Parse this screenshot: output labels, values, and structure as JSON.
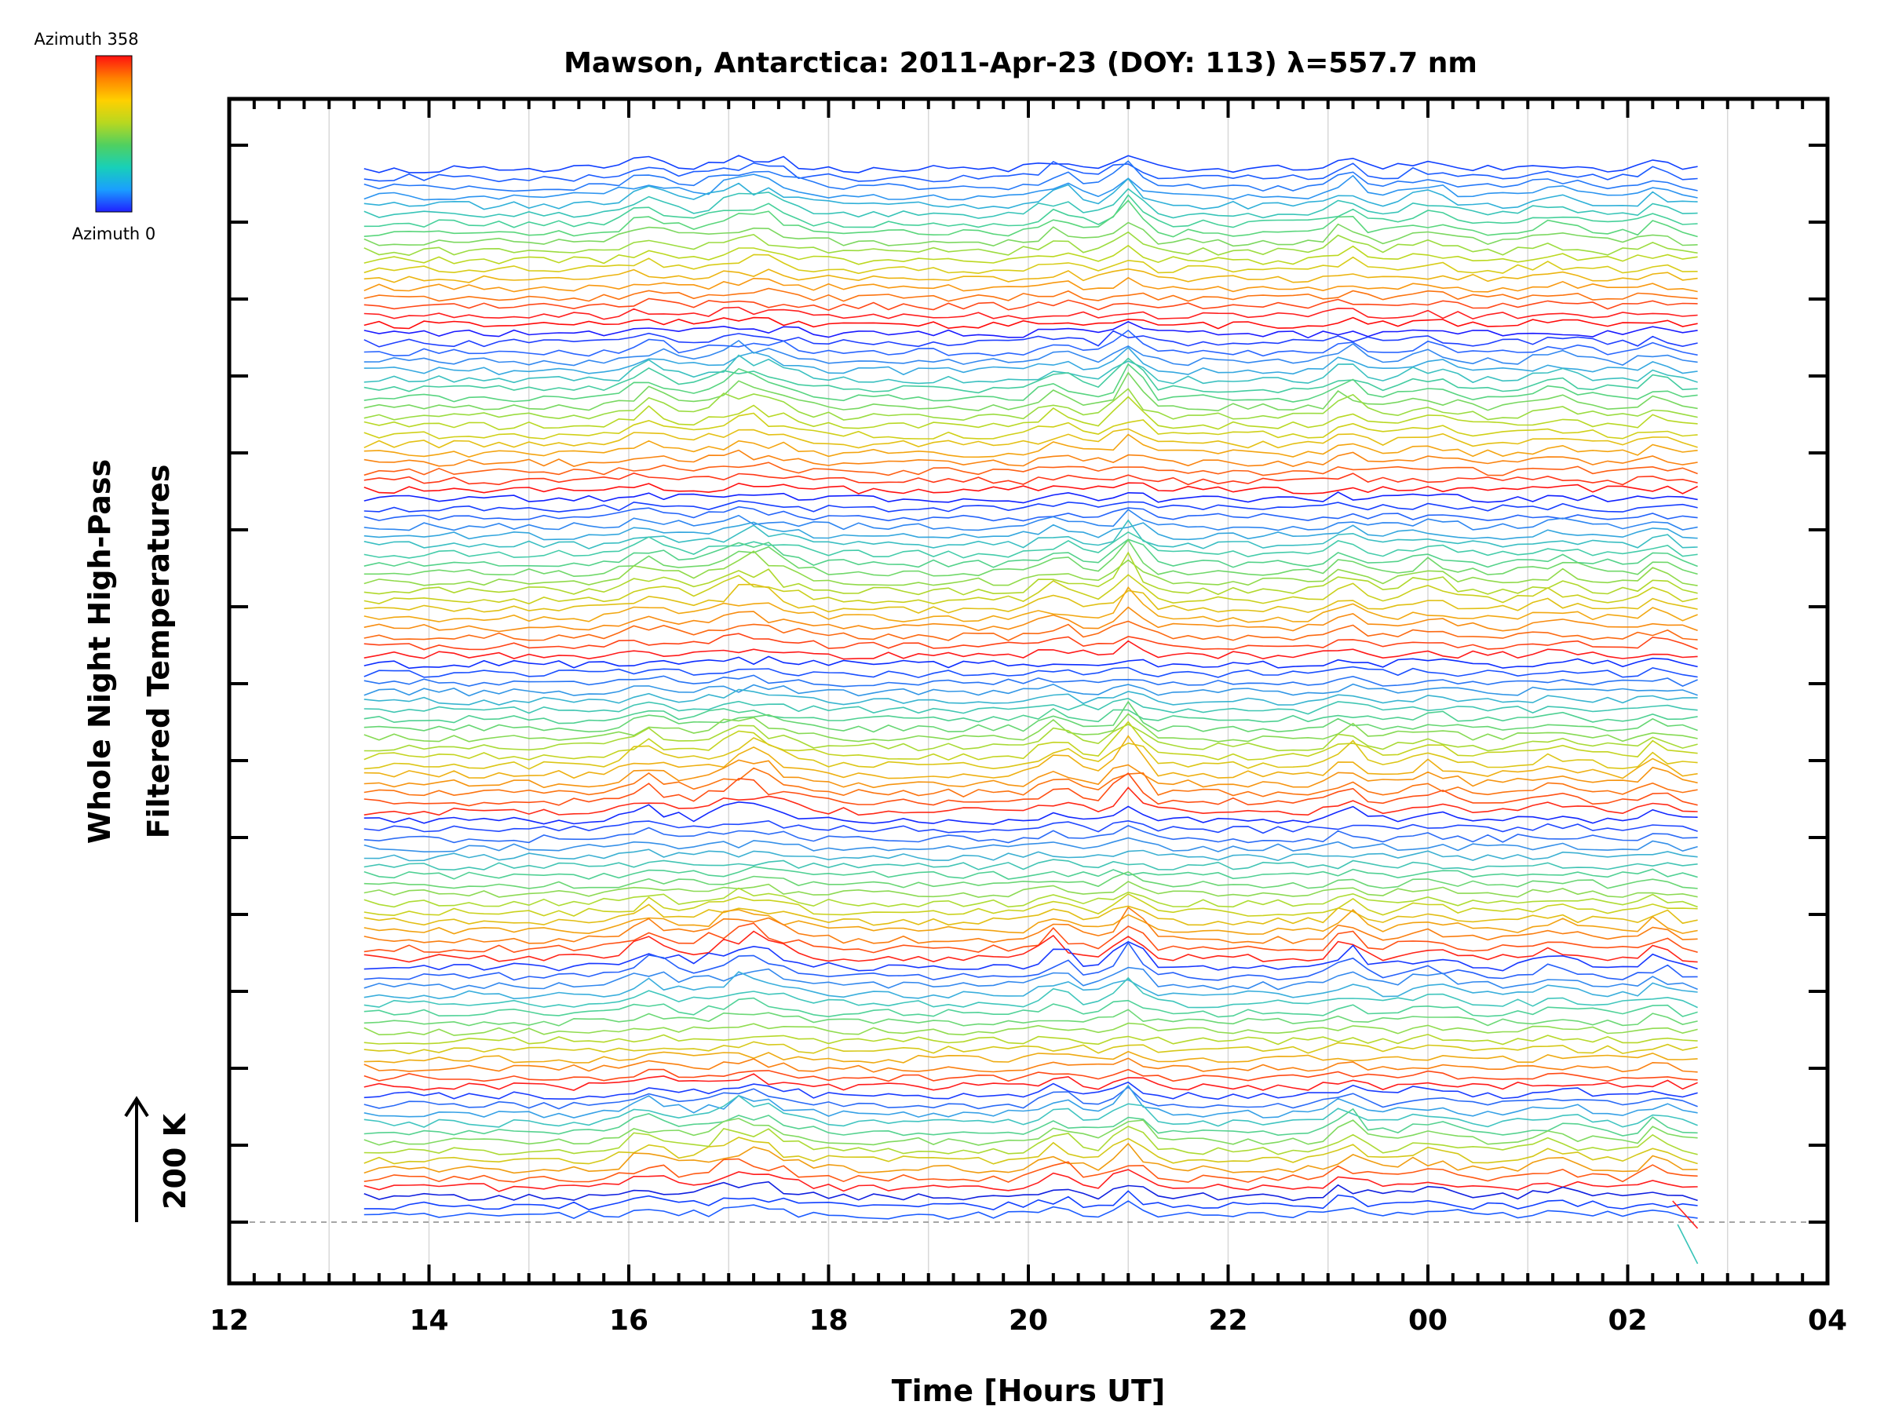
{
  "colorbar": {
    "top_label": "Azimuth  358",
    "bottom_label": "Azimuth  0",
    "colors": [
      "#2020ff",
      "#1a9fff",
      "#18d0b8",
      "#50d060",
      "#b8d820",
      "#ffd000",
      "#ff8000",
      "#ff1010"
    ]
  },
  "chart_data": {
    "type": "line",
    "title": "Mawson, Antarctica: 2011-Apr-23 (DOY: 113) λ=557.7 nm",
    "xlabel": "Time [Hours UT]",
    "ylabel": [
      "Whole Night High-Pass",
      "Filtered Temperatures"
    ],
    "scale_label": "200 K",
    "x_axis": {
      "range_hours_ut": [
        12,
        28
      ],
      "tick_hours_ut": [
        12,
        14,
        16,
        18,
        20,
        22,
        24,
        26,
        28
      ],
      "tick_labels": [
        "12",
        "14",
        "16",
        "18",
        "20",
        "22",
        "00",
        "02",
        "04"
      ],
      "gridlines_hours_ut": [
        13,
        14,
        15,
        16,
        17,
        18,
        19,
        20,
        21,
        22,
        23,
        24,
        25,
        26,
        27
      ],
      "minor_ticks_per_hour": 4
    },
    "y_axis": {
      "major_ticks": 15,
      "minor_ticks_per_major": 1
    },
    "grid": true,
    "baseline_dashed": true,
    "data_window_hours_ut": [
      13.35,
      26.7
    ],
    "sample_interval_hours": 0.15,
    "series_count": 115,
    "series_cycle": [
      "#1040ff",
      "#1c5cff",
      "#2478f8",
      "#2c94f0",
      "#30b0d8",
      "#38c4b8",
      "#46d09a",
      "#5ad67c",
      "#7cd860",
      "#9cdc40",
      "#bcd820",
      "#d8cc18",
      "#ecb410",
      "#f89810",
      "#fc7410",
      "#ff4818",
      "#ff2020",
      "#ff0a0a",
      "#1a1aff",
      "#2040ff",
      "#2a66ff",
      "#3388f0",
      "#36a8e0",
      "#3bc0c0",
      "#44cca0",
      "#58d480",
      "#78d860",
      "#9adc40",
      "#b8d824",
      "#d0d018",
      "#e4c014",
      "#f4a410",
      "#fa8410",
      "#fe6014",
      "#ff3818",
      "#ff1010",
      "#1020ff",
      "#1840ff",
      "#2464fa",
      "#2e86f0",
      "#34a6de",
      "#3abec2",
      "#44ccaa",
      "#54d28a",
      "#70d86a",
      "#90da4a",
      "#b0d82c",
      "#cad01c",
      "#e0c014",
      "#f2a812",
      "#f88c10",
      "#fc6a12",
      "#ff4216",
      "#ff1a1a",
      "#0c2cff",
      "#1a50ff",
      "#2874f4",
      "#3296e6",
      "#38b4d0",
      "#40c6b2",
      "#4ed092",
      "#66d672",
      "#86da54",
      "#a8da36",
      "#c4d420",
      "#dcc616",
      "#eeb012",
      "#f69410",
      "#fc7410",
      "#ff5014",
      "#ff2a18",
      "#1228ff",
      "#2048ff",
      "#2c6cf6",
      "#3690e8",
      "#3cb0d2",
      "#42c4b4",
      "#50d094",
      "#6ad674",
      "#8cda54",
      "#aedc34",
      "#cad21e",
      "#e2be14",
      "#f2a210",
      "#fa7e10",
      "#ff5216",
      "#ff2418",
      "#1838ff",
      "#2660fa",
      "#3288ee",
      "#3aaedc",
      "#40c6bc",
      "#50d298",
      "#6cd876",
      "#90dc50",
      "#b6d82a",
      "#d6c818",
      "#eeaa12",
      "#fa8010",
      "#ff4a16",
      "#ff1c1c",
      "#1a3cff",
      "#2a6af6",
      "#36a0e6",
      "#40c4c0",
      "#56d290",
      "#80da60",
      "#acda34",
      "#d4c818",
      "#f09c10",
      "#ff5a14",
      "#ff1e1e",
      "#1020e0"
    ],
    "features": [
      {
        "x_hours_ut": 16.2,
        "amp": 0.9,
        "width_hours": 0.28
      },
      {
        "x_hours_ut": 17.2,
        "amp": 1.2,
        "width_hours": 0.45
      },
      {
        "x_hours_ut": 20.3,
        "amp": 0.9,
        "width_hours": 0.22
      },
      {
        "x_hours_ut": 21.0,
        "amp": 1.6,
        "width_hours": 0.18
      },
      {
        "x_hours_ut": 23.2,
        "amp": 1.0,
        "width_hours": 0.18
      },
      {
        "x_hours_ut": 24.0,
        "amp": 0.6,
        "width_hours": 0.3
      },
      {
        "x_hours_ut": 25.3,
        "amp": 0.5,
        "width_hours": 0.3
      },
      {
        "x_hours_ut": 26.3,
        "amp": 0.7,
        "width_hours": 0.15
      }
    ]
  }
}
